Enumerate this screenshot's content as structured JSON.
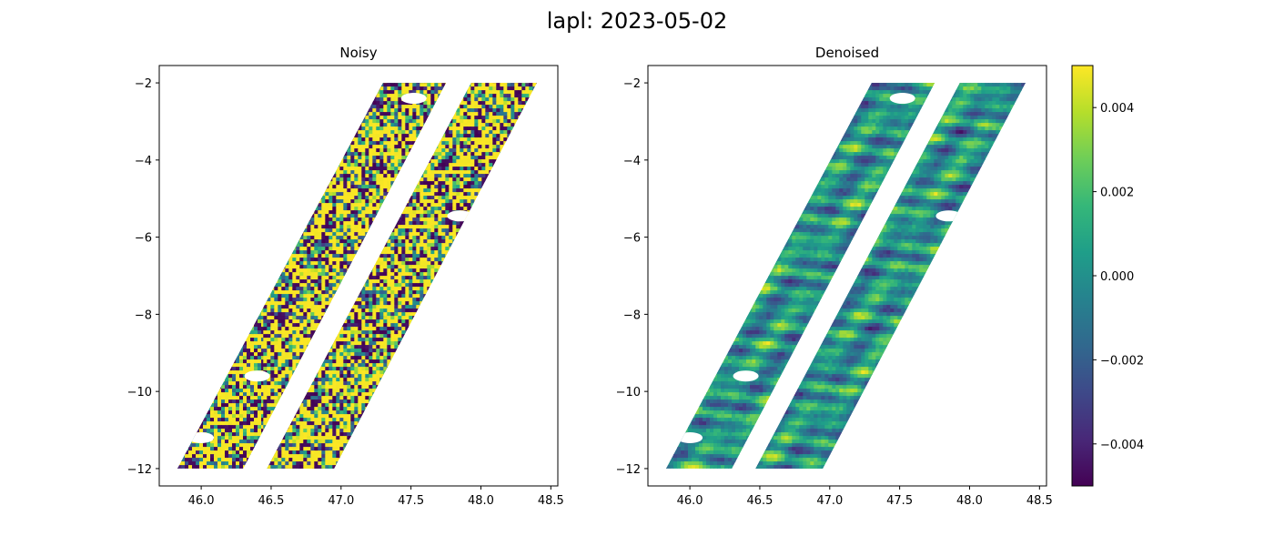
{
  "title": "lapl: 2023-05-02",
  "chart_data": [
    {
      "type": "heatmap",
      "title": "Noisy",
      "xlim": [
        45.7,
        48.55
      ],
      "ylim": [
        -12.45,
        -1.55
      ],
      "xticks": [
        46.0,
        46.5,
        47.0,
        47.5,
        48.0,
        48.5
      ],
      "xtick_labels": [
        "46.0",
        "46.5",
        "47.0",
        "47.5",
        "48.0",
        "48.5"
      ],
      "yticks": [
        -2,
        -4,
        -6,
        -8,
        -10,
        -12
      ],
      "ytick_labels": [
        "−2",
        "−4",
        "−6",
        "−8",
        "−10",
        "−12"
      ],
      "swaths": [
        {
          "top_y": -2.0,
          "bottom_y": -12.0,
          "top_x": [
            47.3,
            47.75
          ],
          "bottom_x": [
            45.83,
            46.3
          ]
        },
        {
          "top_y": -2.0,
          "bottom_y": -12.0,
          "top_x": [
            47.93,
            48.4
          ],
          "bottom_x": [
            46.47,
            46.95
          ]
        }
      ],
      "gaps": [
        {
          "lon": 47.52,
          "lat": -2.4
        },
        {
          "lon": 47.85,
          "lat": -5.45
        },
        {
          "lon": 46.4,
          "lat": -9.6
        },
        {
          "lon": 46.0,
          "lat": -11.2
        }
      ],
      "color_range": [
        -0.005,
        0.005
      ],
      "noise_level": "high"
    },
    {
      "type": "heatmap",
      "title": "Denoised",
      "xlim": [
        45.7,
        48.55
      ],
      "ylim": [
        -12.45,
        -1.55
      ],
      "xticks": [
        46.0,
        46.5,
        47.0,
        47.5,
        48.0,
        48.5
      ],
      "xtick_labels": [
        "46.0",
        "46.5",
        "47.0",
        "47.5",
        "48.0",
        "48.5"
      ],
      "yticks": [
        -2,
        -4,
        -6,
        -8,
        -10,
        -12
      ],
      "ytick_labels": [
        "−2",
        "−4",
        "−6",
        "−8",
        "−10",
        "−12"
      ],
      "swaths": [
        {
          "top_y": -2.0,
          "bottom_y": -12.0,
          "top_x": [
            47.3,
            47.75
          ],
          "bottom_x": [
            45.83,
            46.3
          ]
        },
        {
          "top_y": -2.0,
          "bottom_y": -12.0,
          "top_x": [
            47.93,
            48.4
          ],
          "bottom_x": [
            46.47,
            46.95
          ]
        }
      ],
      "gaps": [
        {
          "lon": 47.52,
          "lat": -2.4
        },
        {
          "lon": 47.85,
          "lat": -5.45
        },
        {
          "lon": 46.4,
          "lat": -9.6
        },
        {
          "lon": 46.0,
          "lat": -11.2
        }
      ],
      "color_range": [
        -0.005,
        0.005
      ],
      "noise_level": "low"
    }
  ],
  "colorbar": {
    "colormap": "viridis",
    "range": [
      -0.005,
      0.005
    ],
    "ticks": [
      0.004,
      0.002,
      0.0,
      -0.002,
      -0.004
    ],
    "tick_labels": [
      "0.004",
      "0.002",
      "0.000",
      "−0.002",
      "−0.004"
    ],
    "colors": [
      "#440154",
      "#482878",
      "#3e4989",
      "#31688e",
      "#26828e",
      "#1f9e89",
      "#35b779",
      "#6ece58",
      "#b5de2b",
      "#fde725"
    ]
  }
}
